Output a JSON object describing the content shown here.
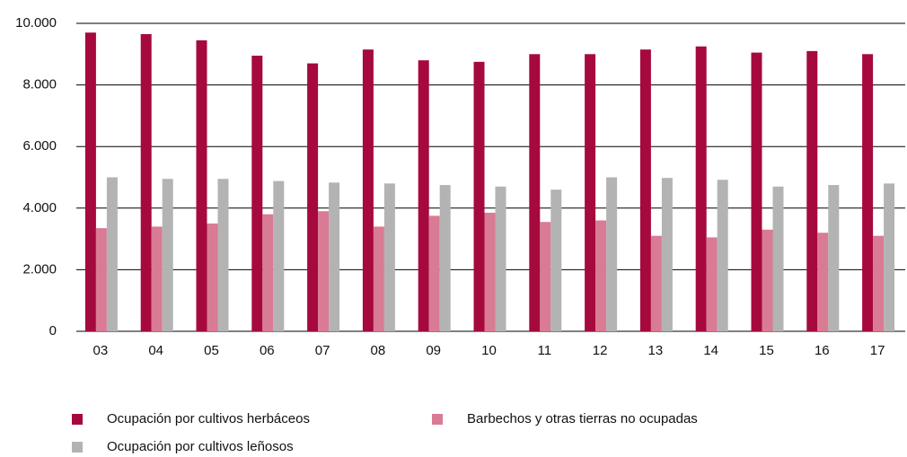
{
  "chart_data": {
    "type": "bar",
    "categories": [
      "03",
      "04",
      "05",
      "06",
      "07",
      "08",
      "09",
      "10",
      "11",
      "12",
      "13",
      "14",
      "15",
      "16",
      "17"
    ],
    "series": [
      {
        "name": "Ocupación por cultivos herbáceos",
        "color": "#a6093d",
        "values": [
          9700,
          9650,
          9450,
          8950,
          8700,
          9150,
          8800,
          8750,
          9000,
          9000,
          9150,
          9250,
          9050,
          9100,
          9000
        ]
      },
      {
        "name": "Barbechos y otras tierras no ocupadas",
        "color": "#d97b94",
        "values": [
          3350,
          3400,
          3500,
          3800,
          3900,
          3400,
          3750,
          3850,
          3550,
          3600,
          3100,
          3050,
          3300,
          3200,
          3100
        ]
      },
      {
        "name": "Ocupación por cultivos leñosos",
        "color": "#b3b3b3",
        "values": [
          5000,
          4950,
          4950,
          4880,
          4830,
          4800,
          4750,
          4700,
          4600,
          5000,
          4980,
          4920,
          4700,
          4750,
          4800
        ]
      }
    ],
    "ylim": [
      0,
      10000
    ],
    "yticks": [
      0,
      {
        "value": 2000,
        "label": "2.000"
      },
      {
        "value": 4000,
        "label": "4.000"
      },
      {
        "value": 6000,
        "label": "6.000"
      },
      {
        "value": 8000,
        "label": "8.000"
      },
      {
        "value": 10000,
        "label": "10.000"
      }
    ],
    "grid": true,
    "legend": "bottom"
  }
}
